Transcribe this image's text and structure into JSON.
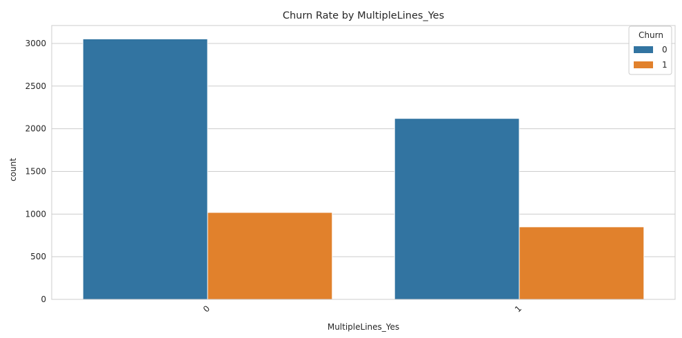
{
  "chart_data": {
    "type": "bar",
    "title": "Churn Rate by MultipleLines_Yes",
    "xlabel": "MultipleLines_Yes",
    "ylabel": "count",
    "categories": [
      "0",
      "1"
    ],
    "series": [
      {
        "name": "0",
        "values": [
          3053,
          2121
        ],
        "color": "#3274a1"
      },
      {
        "name": "1",
        "values": [
          1019,
          850
        ],
        "color": "#e1812c"
      }
    ],
    "ylim": [
      0,
      3210
    ],
    "yticks": [
      0,
      500,
      1000,
      1500,
      2000,
      2500,
      3000
    ],
    "grid": true,
    "legend": {
      "title": "Churn",
      "placement": "top-right"
    }
  }
}
